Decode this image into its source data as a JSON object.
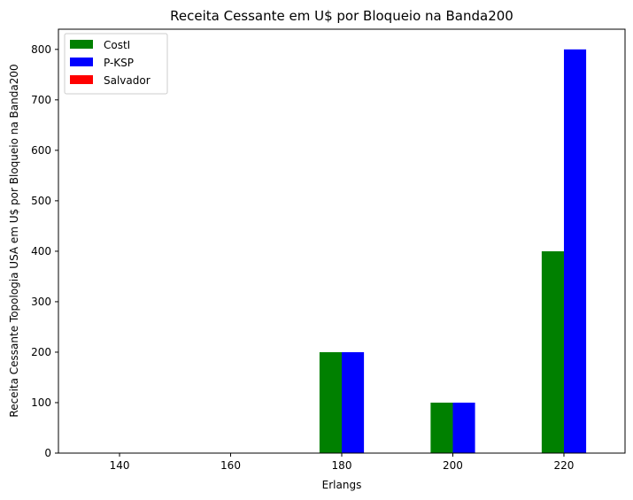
{
  "chart_data": {
    "type": "bar",
    "title": "Receita Cessante em U$ por Bloqueio na Banda200",
    "xlabel": "Erlangs",
    "ylabel": "Receita Cessante Topologia USA em U$ por Bloqueio na Banda200",
    "categories": [
      "140",
      "160",
      "180",
      "200",
      "220"
    ],
    "x": [
      140,
      160,
      180,
      200,
      220
    ],
    "xlim": [
      129,
      231
    ],
    "ylim": [
      0,
      840
    ],
    "yticks": [
      0,
      100,
      200,
      300,
      400,
      500,
      600,
      700,
      800
    ],
    "grid": false,
    "legend_position": "top-left",
    "series": [
      {
        "name": "CostI",
        "color": "#008000",
        "values": [
          0,
          0,
          200,
          100,
          400
        ]
      },
      {
        "name": "P-KSP",
        "color": "#0000ff",
        "values": [
          0,
          0,
          200,
          100,
          800
        ]
      },
      {
        "name": "Salvador",
        "color": "#ff0000",
        "values": [
          0,
          0,
          0,
          0,
          0
        ]
      }
    ]
  }
}
